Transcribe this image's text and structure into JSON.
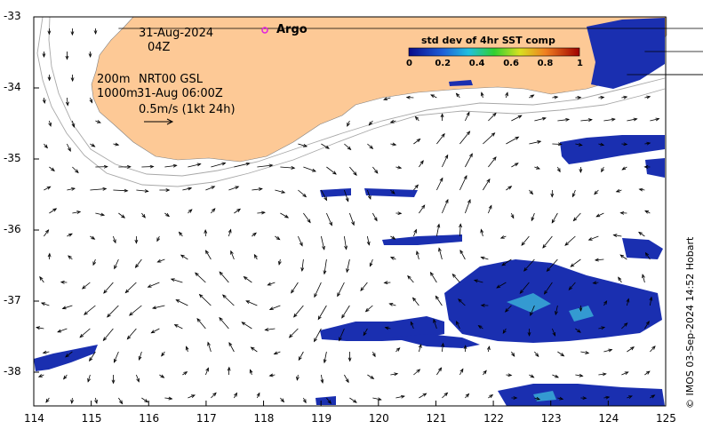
{
  "header": {
    "date": "31-Aug-2024",
    "hour": "04Z",
    "depth_line1": "200m",
    "depth_line2": "1000m",
    "product": "NRT00 GSL",
    "product_time": "31-Aug 06:00Z",
    "scale_label": "0.5m/s (1kt 24h)"
  },
  "legend": {
    "argo_label": "Argo",
    "argo_color": "#e020e0"
  },
  "colorbar": {
    "title": "std dev of 4hr SST comp",
    "ticks": [
      "0",
      "0.2",
      "0.4",
      "0.6",
      "0.8",
      "1"
    ]
  },
  "credit": "© IMOS 03-Sep-2024 14:52 Hobart",
  "colors": {
    "land": "#fdc996",
    "ocean": "#ffffff",
    "sst_patch": "#1a2fb0"
  },
  "axes": {
    "x_ticks": [
      "114",
      "115",
      "116",
      "117",
      "118",
      "119",
      "120",
      "121",
      "122",
      "123",
      "124",
      "125"
    ],
    "y_ticks": [
      "-33",
      "-34",
      "-35",
      "-36",
      "-37",
      "-38"
    ],
    "xlim": [
      114,
      125
    ],
    "ylim": [
      -38.5,
      -33
    ]
  }
}
